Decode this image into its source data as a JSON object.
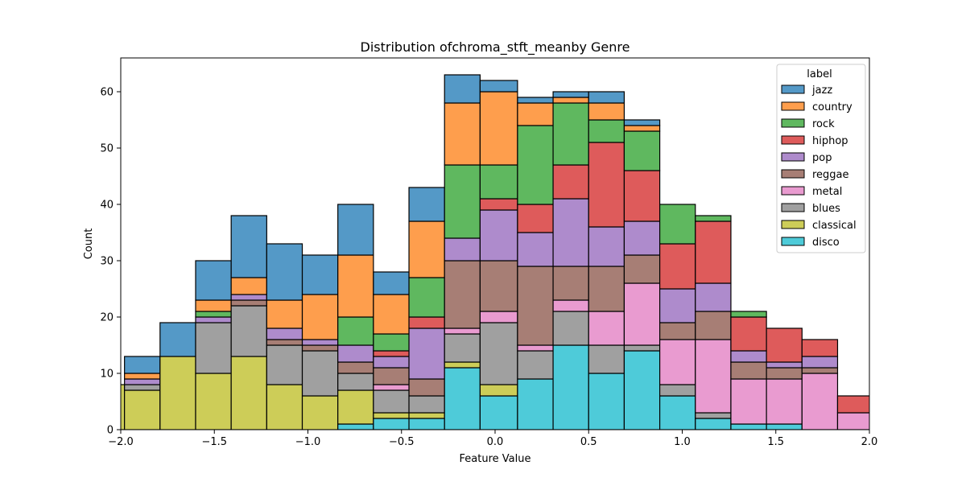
{
  "chart_data": {
    "type": "bar",
    "stacked": true,
    "title": "Distribution ofchroma_stft_meanby Genre",
    "xlabel": "Feature Value",
    "ylabel": "Count",
    "xlim": [
      -2.0,
      2.0
    ],
    "ylim": [
      0,
      66
    ],
    "xticks": [
      -2.0,
      -1.5,
      -1.0,
      -0.5,
      0.0,
      0.5,
      1.0,
      1.5,
      2.0
    ],
    "xtick_labels": [
      "−2.0",
      "−1.5",
      "−1.0",
      "−0.5",
      "0.0",
      "0.5",
      "1.0",
      "1.5",
      "2.0"
    ],
    "yticks": [
      0,
      10,
      20,
      30,
      40,
      50,
      60
    ],
    "ytick_labels": [
      "0",
      "10",
      "20",
      "30",
      "40",
      "50",
      "60"
    ],
    "grid": false,
    "legend": {
      "title": "label",
      "position": "top-right"
    },
    "bins": [
      [
        -2.17,
        -1.98
      ],
      [
        -1.98,
        -1.79
      ],
      [
        -1.79,
        -1.6
      ],
      [
        -1.6,
        -1.41
      ],
      [
        -1.41,
        -1.22
      ],
      [
        -1.22,
        -1.03
      ],
      [
        -1.03,
        -0.84
      ],
      [
        -0.84,
        -0.65
      ],
      [
        -0.65,
        -0.46
      ],
      [
        -0.46,
        -0.27
      ],
      [
        -0.27,
        -0.08
      ],
      [
        -0.08,
        0.12
      ],
      [
        0.12,
        0.31
      ],
      [
        0.31,
        0.5
      ],
      [
        0.5,
        0.69
      ],
      [
        0.69,
        0.88
      ],
      [
        0.88,
        1.07
      ],
      [
        1.07,
        1.26
      ],
      [
        1.26,
        1.45
      ],
      [
        1.45,
        1.64
      ],
      [
        1.64,
        1.83
      ],
      [
        1.83,
        2.02
      ]
    ],
    "series": [
      {
        "name": "disco",
        "color": "#4ecbd9",
        "values": [
          0,
          0,
          0,
          0,
          0,
          0,
          0,
          1,
          2,
          2,
          11,
          6,
          9,
          15,
          10,
          14,
          6,
          2,
          1,
          1,
          0,
          0
        ]
      },
      {
        "name": "classical",
        "color": "#cdcd58",
        "values": [
          8,
          7,
          13,
          10,
          13,
          8,
          6,
          6,
          1,
          1,
          1,
          2,
          0,
          0,
          0,
          0,
          0,
          0,
          0,
          0,
          0,
          0
        ]
      },
      {
        "name": "blues",
        "color": "#a0a0a0",
        "values": [
          0,
          1,
          0,
          9,
          9,
          7,
          8,
          3,
          4,
          3,
          5,
          11,
          5,
          6,
          5,
          1,
          2,
          1,
          0,
          0,
          0,
          0
        ]
      },
      {
        "name": "metal",
        "color": "#e99bd0",
        "values": [
          0,
          0,
          0,
          0,
          0,
          0,
          0,
          0,
          1,
          0,
          1,
          2,
          1,
          2,
          6,
          11,
          8,
          13,
          8,
          8,
          10,
          3
        ]
      },
      {
        "name": "reggae",
        "color": "#a77e75",
        "values": [
          0,
          0,
          0,
          0,
          1,
          1,
          1,
          2,
          3,
          3,
          12,
          9,
          14,
          6,
          8,
          5,
          3,
          5,
          3,
          2,
          1,
          0
        ]
      },
      {
        "name": "pop",
        "color": "#ae8bcc",
        "values": [
          0,
          1,
          0,
          1,
          1,
          2,
          1,
          3,
          2,
          9,
          4,
          9,
          6,
          12,
          7,
          6,
          6,
          5,
          2,
          1,
          2,
          0
        ]
      },
      {
        "name": "hiphop",
        "color": "#de5b5b",
        "values": [
          0,
          0,
          0,
          0,
          0,
          0,
          0,
          0,
          1,
          2,
          0,
          2,
          5,
          6,
          15,
          9,
          8,
          11,
          6,
          6,
          3,
          3
        ]
      },
      {
        "name": "rock",
        "color": "#5fb85f",
        "values": [
          0,
          0,
          0,
          1,
          0,
          0,
          0,
          5,
          3,
          7,
          13,
          6,
          14,
          11,
          4,
          7,
          7,
          1,
          1,
          0,
          0,
          0
        ]
      },
      {
        "name": "country",
        "color": "#fe9e4d",
        "values": [
          0,
          1,
          0,
          2,
          3,
          5,
          8,
          11,
          7,
          10,
          11,
          13,
          4,
          1,
          3,
          1,
          0,
          0,
          0,
          0,
          0,
          0
        ]
      },
      {
        "name": "jazz",
        "color": "#5499c7",
        "values": [
          0,
          3,
          6,
          7,
          11,
          10,
          7,
          9,
          4,
          6,
          5,
          2,
          1,
          1,
          2,
          1,
          0,
          0,
          0,
          0,
          0,
          0
        ]
      }
    ],
    "legend_order": [
      "jazz",
      "country",
      "rock",
      "hiphop",
      "pop",
      "reggae",
      "metal",
      "blues",
      "classical",
      "disco"
    ]
  }
}
